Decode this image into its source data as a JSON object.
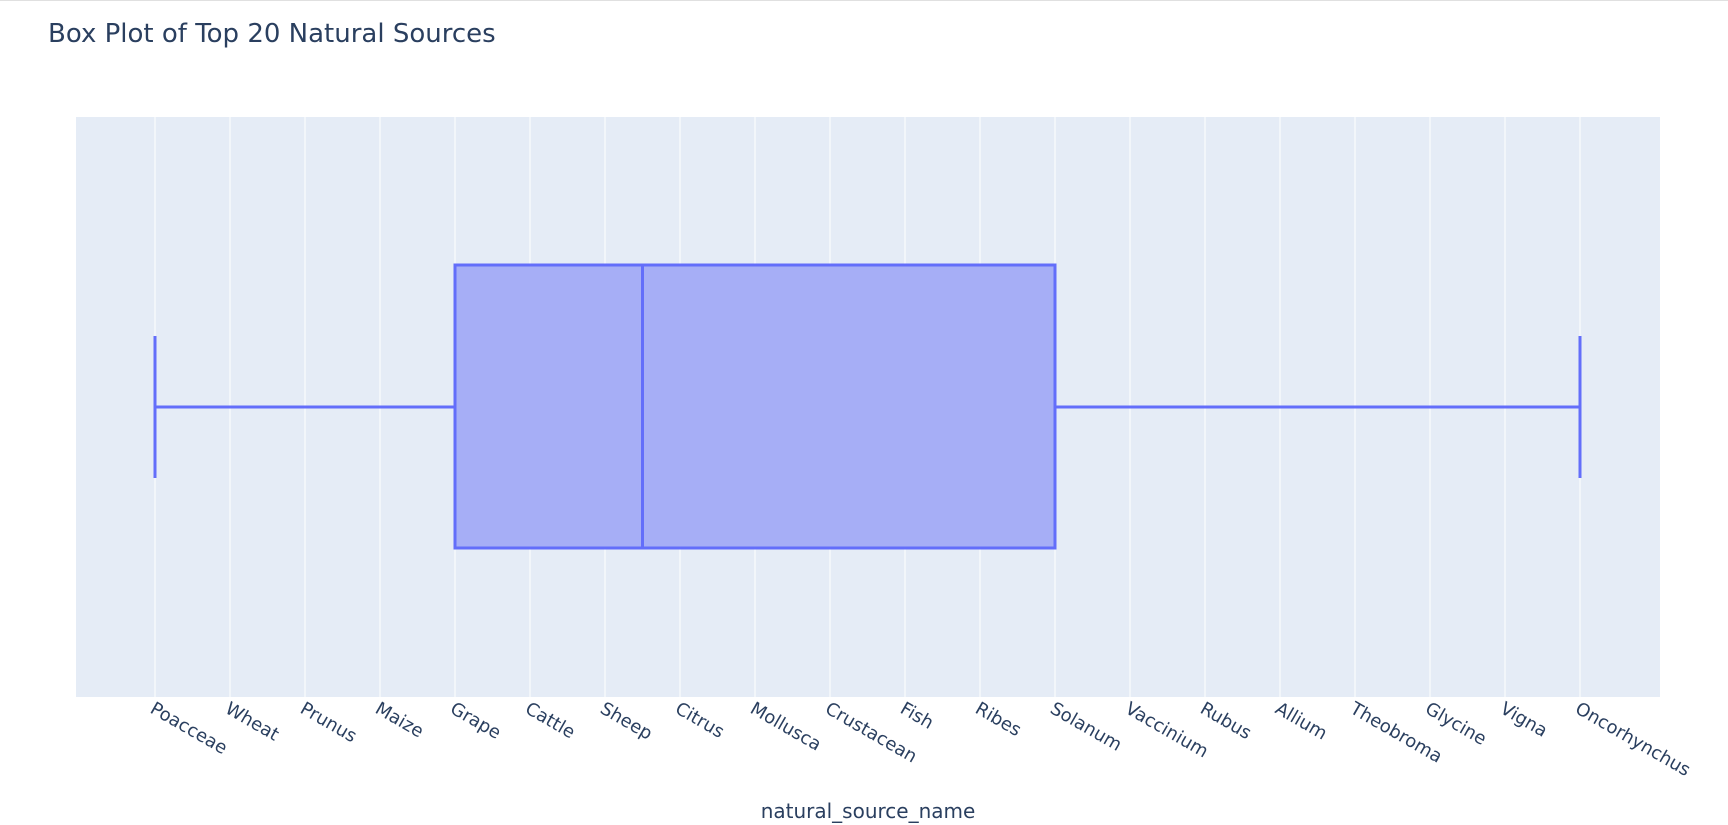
{
  "chart_data": {
    "type": "box",
    "title": "Box Plot of Top 20 Natural Sources",
    "xlabel": "natural_source_name",
    "ylabel": "",
    "orientation": "horizontal",
    "categories": [
      "Poacceae",
      "Wheat",
      "Prunus",
      "Maize",
      "Grape",
      "Cattle",
      "Sheep",
      "Citrus",
      "Mollusca",
      "Crustacean",
      "Fish",
      "Ribes",
      "Solanum",
      "Vaccinium",
      "Rubus",
      "Allium",
      "Theobroma",
      "Glycine",
      "Vigna",
      "Oncorhynchus"
    ],
    "box": {
      "min": "Poacceae",
      "q1": "Grape",
      "median": "Sheep",
      "median_position": 6.5,
      "q3": "Solanum",
      "max": "Oncorhynchus"
    },
    "grid": true,
    "colors": {
      "plot_background": "#e5ecf6",
      "grid": "#ffffff",
      "box_line": "#636efa",
      "box_fill": "#a2abf6",
      "text": "#2a3f5f"
    }
  }
}
